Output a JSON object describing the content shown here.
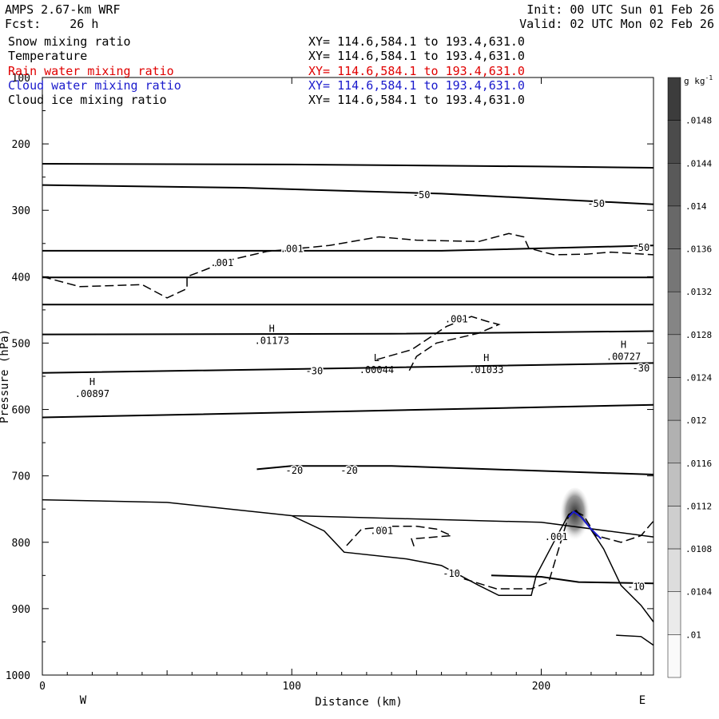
{
  "header": {
    "model": "AMPS 2.67-km WRF",
    "init": "Init: 00 UTC Sun 01 Feb 26",
    "fcst_label": "Fcst:",
    "fcst_value": "26 h",
    "valid": "Valid: 02 UTC Mon 02 Feb 26"
  },
  "fields": [
    {
      "name": "Snow mixing ratio",
      "xy": "XY= 114.6,584.1 to 193.4,631.0",
      "color": "#000000"
    },
    {
      "name": "Temperature",
      "xy": "XY= 114.6,584.1 to 193.4,631.0",
      "color": "#000000"
    },
    {
      "name": "Rain water mixing ratio",
      "xy": "XY= 114.6,584.1 to 193.4,631.0",
      "color": "#e00000"
    },
    {
      "name": "Cloud water mixing ratio",
      "xy": "XY= 114.6,584.1 to 193.4,631.0",
      "color": "#1a1acc"
    },
    {
      "name": "Cloud ice mixing ratio",
      "xy": "XY= 114.6,584.1 to 193.4,631.0",
      "color": "#000000"
    }
  ],
  "chart_data": {
    "type": "contour",
    "xlabel": "Distance (km)",
    "ylabel": "Pressure (hPa)",
    "xlim": [
      0,
      245
    ],
    "ylim": [
      1000,
      100
    ],
    "x_ticks": [
      0,
      100,
      200
    ],
    "y_ticks": [
      1000,
      900,
      800,
      700,
      600,
      500,
      400,
      300,
      200,
      100
    ],
    "x_end_labels": {
      "left": "W",
      "right": "E"
    },
    "colorbar": {
      "unit": "g kg",
      "unit_exp": "-1",
      "labels": [
        ".0148",
        ".0144",
        ".014",
        ".0136",
        ".0132",
        ".0128",
        ".0124",
        ".012",
        ".0116",
        ".0112",
        ".0108",
        ".0104",
        ".01"
      ]
    },
    "temperature_contours": [
      {
        "label": "-50",
        "points": [
          [
            0,
            230
          ],
          [
            100,
            231
          ],
          [
            200,
            234
          ],
          [
            245,
            236
          ]
        ]
      },
      {
        "label": "-50",
        "points": [
          [
            0,
            262
          ],
          [
            80,
            266
          ],
          [
            160,
            275
          ],
          [
            245,
            291
          ]
        ]
      },
      {
        "label": "-50",
        "points": [
          [
            0,
            361
          ],
          [
            160,
            361
          ],
          [
            245,
            353
          ]
        ]
      },
      {
        "label": "",
        "points": [
          [
            0,
            401
          ],
          [
            245,
            401
          ]
        ]
      },
      {
        "label": "",
        "points": [
          [
            0,
            442
          ],
          [
            245,
            442
          ]
        ]
      },
      {
        "label": "",
        "points": [
          [
            0,
            487
          ],
          [
            140,
            486
          ],
          [
            245,
            482
          ]
        ]
      },
      {
        "label": "-30",
        "points": [
          [
            0,
            545
          ],
          [
            120,
            538
          ],
          [
            245,
            530
          ]
        ]
      },
      {
        "label": "",
        "points": [
          [
            0,
            612
          ],
          [
            120,
            603
          ],
          [
            245,
            593
          ]
        ]
      },
      {
        "label": "-20",
        "points": [
          [
            86,
            690
          ],
          [
            100,
            685
          ],
          [
            140,
            685
          ],
          [
            180,
            690
          ],
          [
            245,
            698
          ]
        ]
      },
      {
        "label": "-10",
        "points": [
          [
            180,
            850
          ],
          [
            200,
            852
          ],
          [
            215,
            860
          ],
          [
            245,
            862
          ]
        ]
      }
    ],
    "dashed_contours": [
      {
        "label": ".001",
        "points": [
          [
            0,
            400
          ],
          [
            15,
            415
          ],
          [
            40,
            412
          ],
          [
            50,
            432
          ],
          [
            58,
            418
          ],
          [
            58,
            400
          ],
          [
            65,
            390
          ],
          [
            75,
            375
          ],
          [
            90,
            362
          ],
          [
            115,
            353
          ],
          [
            135,
            340
          ],
          [
            150,
            345
          ],
          [
            175,
            347
          ],
          [
            187,
            335
          ],
          [
            193,
            340
          ],
          [
            195,
            357
          ],
          [
            205,
            367
          ],
          [
            218,
            366
          ],
          [
            228,
            363
          ],
          [
            245,
            367
          ]
        ]
      },
      {
        "label": ".001",
        "points": [
          [
            134,
            525
          ],
          [
            148,
            510
          ],
          [
            162,
            475
          ],
          [
            172,
            460
          ],
          [
            178,
            467
          ],
          [
            183,
            472
          ],
          [
            175,
            485
          ],
          [
            158,
            500
          ],
          [
            150,
            520
          ],
          [
            147,
            542
          ]
        ]
      },
      {
        "label": ".001",
        "points": [
          [
            122,
            805
          ],
          [
            128,
            780
          ],
          [
            140,
            776
          ],
          [
            150,
            776
          ],
          [
            158,
            780
          ],
          [
            164,
            790
          ],
          [
            148,
            795
          ],
          [
            149,
            806
          ]
        ]
      },
      {
        "label": ".001",
        "points": [
          [
            169,
            855
          ],
          [
            182,
            870
          ],
          [
            196,
            870
          ],
          [
            203,
            860
          ],
          [
            207,
            810
          ],
          [
            211,
            760
          ],
          [
            213,
            752
          ],
          [
            217,
            760
          ],
          [
            222,
            790
          ],
          [
            232,
            800
          ],
          [
            240,
            790
          ],
          [
            245,
            768
          ]
        ]
      }
    ],
    "terrain_lines": [
      {
        "points": [
          [
            0,
            736
          ],
          [
            50,
            740
          ],
          [
            100,
            760
          ],
          [
            200,
            770
          ],
          [
            245,
            792
          ]
        ]
      },
      {
        "points": [
          [
            100,
            760
          ],
          [
            113,
            783
          ],
          [
            121,
            815
          ],
          [
            146,
            825
          ],
          [
            160,
            835
          ],
          [
            175,
            865
          ],
          [
            183,
            880
          ],
          [
            196,
            880
          ],
          [
            198,
            850
          ]
        ]
      },
      {
        "points": [
          [
            198,
            850
          ],
          [
            205,
            800
          ],
          [
            211,
            758
          ],
          [
            214,
            752
          ],
          [
            218,
            770
          ],
          [
            225,
            810
          ],
          [
            232,
            865
          ],
          [
            240,
            895
          ],
          [
            245,
            920
          ]
        ]
      },
      {
        "points": [
          [
            230,
            940
          ],
          [
            240,
            942
          ],
          [
            245,
            955
          ]
        ]
      }
    ],
    "extrema": [
      {
        "type": "H",
        "value": ".00897",
        "x": 20,
        "p": 573
      },
      {
        "type": "H",
        "value": ".01173",
        "x": 92,
        "p": 493
      },
      {
        "type": "L",
        "value": ".00044",
        "x": 134,
        "p": 537
      },
      {
        "type": "H",
        "value": ".01033",
        "x": 178,
        "p": 537
      },
      {
        "type": "H",
        "value": ".00727",
        "x": 233,
        "p": 517
      }
    ],
    "contour_labels": [
      {
        "text": "-50",
        "x": 152,
        "p": 277
      },
      {
        "text": "-50",
        "x": 222,
        "p": 290
      },
      {
        "text": "-50",
        "x": 240,
        "p": 356
      },
      {
        "text": ".001",
        "x": 72,
        "p": 379
      },
      {
        "text": ".001",
        "x": 100,
        "p": 358
      },
      {
        "text": ".001",
        "x": 166,
        "p": 464
      },
      {
        "text": "-30",
        "x": 109,
        "p": 542
      },
      {
        "text": "-30",
        "x": 240,
        "p": 538
      },
      {
        "text": "-20",
        "x": 101,
        "p": 692
      },
      {
        "text": "-20",
        "x": 123,
        "p": 692
      },
      {
        "text": ".001",
        "x": 136,
        "p": 783
      },
      {
        "text": ".001",
        "x": 206,
        "p": 792
      },
      {
        "text": "-10",
        "x": 164,
        "p": 847
      },
      {
        "text": "-10",
        "x": 238,
        "p": 867
      }
    ]
  }
}
